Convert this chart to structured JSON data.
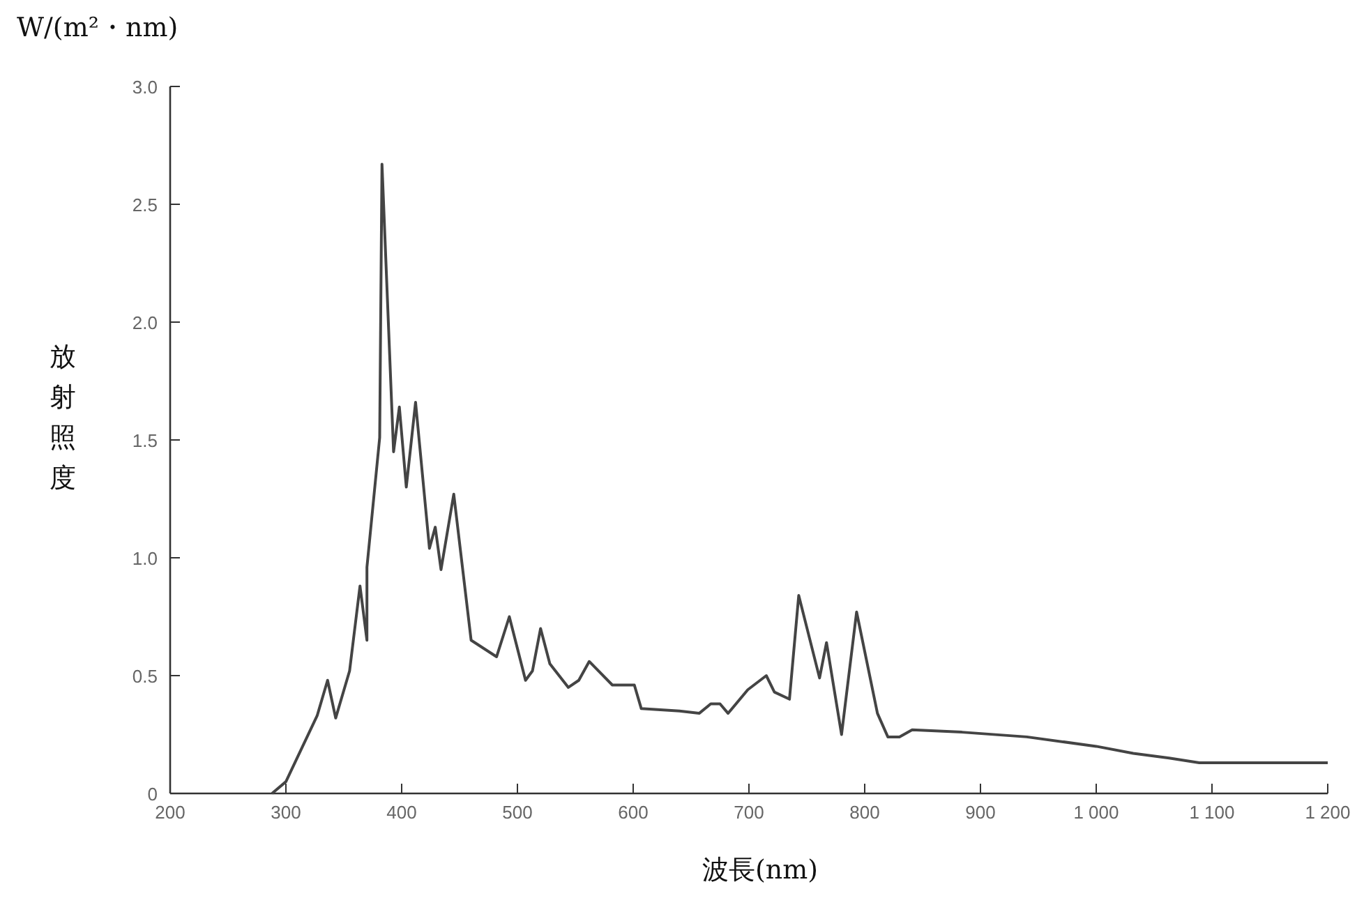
{
  "chart_data": {
    "type": "line",
    "xlabel": "波長(nm)",
    "ylabel": "放射照度",
    "annotations": [
      "W/(m²・nm)"
    ],
    "x": [
      288,
      300,
      327,
      336,
      343,
      355,
      364,
      370,
      370,
      381,
      383,
      393,
      398,
      404,
      412,
      424,
      429,
      434,
      445,
      460,
      482,
      493,
      507,
      513,
      520,
      528,
      544,
      553,
      562,
      582,
      601,
      607,
      640,
      657,
      667,
      675,
      682,
      699,
      715,
      722,
      735,
      743,
      761,
      767,
      780,
      793,
      811,
      820,
      830,
      841,
      884,
      940,
      1000,
      1032,
      1063,
      1089,
      1200
    ],
    "values": [
      0,
      0.05,
      0.33,
      0.48,
      0.32,
      0.52,
      0.88,
      0.65,
      0.96,
      1.51,
      2.67,
      1.45,
      1.64,
      1.3,
      1.66,
      1.04,
      1.13,
      0.95,
      1.27,
      0.65,
      0.58,
      0.75,
      0.48,
      0.52,
      0.7,
      0.55,
      0.45,
      0.48,
      0.56,
      0.46,
      0.46,
      0.36,
      0.35,
      0.34,
      0.38,
      0.38,
      0.34,
      0.44,
      0.5,
      0.43,
      0.4,
      0.84,
      0.49,
      0.64,
      0.25,
      0.77,
      0.34,
      0.24,
      0.24,
      0.27,
      0.26,
      0.24,
      0.2,
      0.17,
      0.15,
      0.13,
      0.13
    ],
    "color": "#444444",
    "xlim": [
      200,
      1200
    ],
    "ylim": [
      0,
      3.0
    ],
    "xticks": [
      200,
      300,
      400,
      500,
      600,
      700,
      800,
      900,
      {
        "value": 1000,
        "label": "1 000"
      },
      {
        "value": 1100,
        "label": "1 100"
      },
      {
        "value": 1200,
        "label": "1 200"
      }
    ],
    "yticks": [
      {
        "value": 0,
        "label": "0"
      },
      {
        "value": 0.5,
        "label": "0.5"
      },
      {
        "value": 1.0,
        "label": "1.0"
      },
      {
        "value": 1.5,
        "label": "1.5"
      },
      {
        "value": 2.0,
        "label": "2.0"
      },
      {
        "value": 2.5,
        "label": "2.5"
      },
      {
        "value": 3.0,
        "label": "3.0"
      }
    ]
  }
}
